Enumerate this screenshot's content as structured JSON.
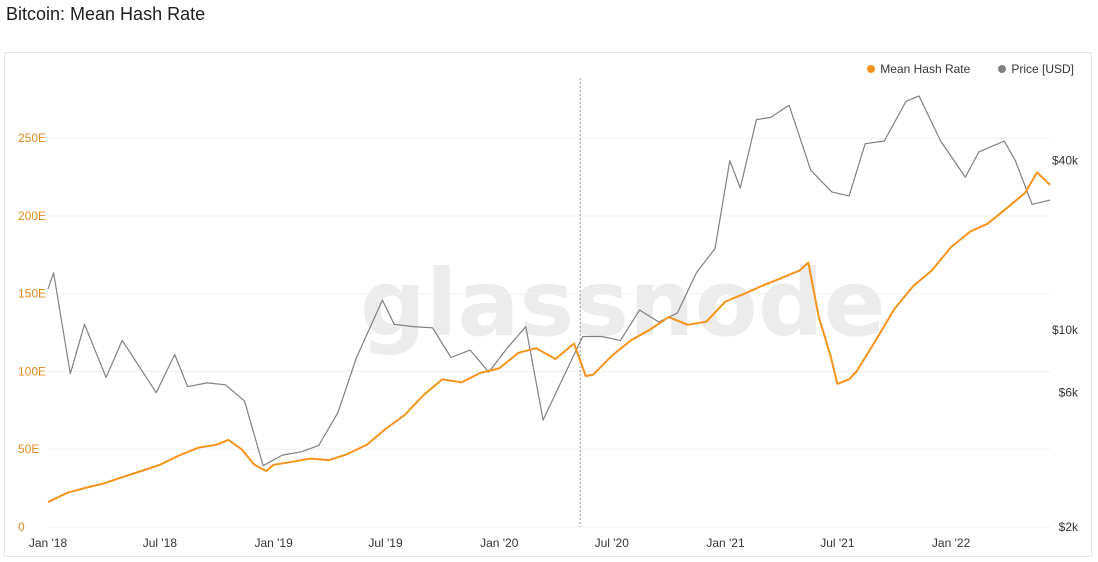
{
  "page": {
    "title": "Bitcoin: Mean Hash Rate"
  },
  "watermark": "glassnode",
  "legend": {
    "items": [
      {
        "label": "Mean Hash Rate",
        "color": "#f7931a"
      },
      {
        "label": "Price [USD]",
        "color": "#808080"
      }
    ]
  },
  "chart_data": {
    "type": "line",
    "title": "Bitcoin: Mean Hash Rate",
    "legend_position": "top-right",
    "grid": true,
    "x": {
      "start": "2018-01-01",
      "end": "2022-06-10",
      "ticks": [
        {
          "label": "Jan '18",
          "date": "2018-01-01"
        },
        {
          "label": "Jul '18",
          "date": "2018-07-01"
        },
        {
          "label": "Jan '19",
          "date": "2019-01-01"
        },
        {
          "label": "Jul '19",
          "date": "2019-07-01"
        },
        {
          "label": "Jan '20",
          "date": "2020-01-01"
        },
        {
          "label": "Jul '20",
          "date": "2020-07-01"
        },
        {
          "label": "Jan '21",
          "date": "2021-01-01"
        },
        {
          "label": "Jul '21",
          "date": "2021-07-01"
        },
        {
          "label": "Jan '22",
          "date": "2022-01-01"
        }
      ],
      "marker_date": "2020-05-11"
    },
    "y_left": {
      "unit": "EH/s",
      "range": [
        0,
        290
      ],
      "ticks": [
        {
          "label": "0",
          "value": 0
        },
        {
          "label": "50E",
          "value": 50
        },
        {
          "label": "100E",
          "value": 100
        },
        {
          "label": "150E",
          "value": 150
        },
        {
          "label": "200E",
          "value": 200
        },
        {
          "label": "250E",
          "value": 250
        }
      ]
    },
    "y_right": {
      "scale": "log",
      "unit": "USD",
      "range": [
        2000,
        80000
      ],
      "ticks": [
        {
          "label": "$2k",
          "value": 2000
        },
        {
          "label": "$6k",
          "value": 6000
        },
        {
          "label": "$10k",
          "value": 10000
        },
        {
          "label": "$40k",
          "value": 40000
        }
      ]
    },
    "series": [
      {
        "name": "Mean Hash Rate",
        "axis": "left",
        "color": "#f7931a",
        "points": [
          [
            "2018-01-01",
            16
          ],
          [
            "2018-02-01",
            22
          ],
          [
            "2018-03-01",
            25
          ],
          [
            "2018-04-01",
            28
          ],
          [
            "2018-05-01",
            32
          ],
          [
            "2018-06-01",
            36
          ],
          [
            "2018-07-01",
            40
          ],
          [
            "2018-08-01",
            46
          ],
          [
            "2018-09-01",
            51
          ],
          [
            "2018-10-01",
            53
          ],
          [
            "2018-10-20",
            56
          ],
          [
            "2018-11-10",
            50
          ],
          [
            "2018-12-01",
            40
          ],
          [
            "2018-12-20",
            36
          ],
          [
            "2019-01-01",
            40
          ],
          [
            "2019-02-01",
            42
          ],
          [
            "2019-03-01",
            44
          ],
          [
            "2019-04-01",
            43
          ],
          [
            "2019-05-01",
            47
          ],
          [
            "2019-06-01",
            53
          ],
          [
            "2019-07-01",
            63
          ],
          [
            "2019-08-01",
            72
          ],
          [
            "2019-09-01",
            85
          ],
          [
            "2019-10-01",
            95
          ],
          [
            "2019-11-01",
            93
          ],
          [
            "2019-12-01",
            99
          ],
          [
            "2020-01-01",
            102
          ],
          [
            "2020-02-01",
            112
          ],
          [
            "2020-03-01",
            115
          ],
          [
            "2020-04-01",
            108
          ],
          [
            "2020-05-01",
            118
          ],
          [
            "2020-05-20",
            97
          ],
          [
            "2020-06-01",
            98
          ],
          [
            "2020-07-01",
            110
          ],
          [
            "2020-08-01",
            120
          ],
          [
            "2020-09-01",
            127
          ],
          [
            "2020-10-01",
            135
          ],
          [
            "2020-11-01",
            130
          ],
          [
            "2020-12-01",
            132
          ],
          [
            "2021-01-01",
            145
          ],
          [
            "2021-02-01",
            150
          ],
          [
            "2021-03-01",
            155
          ],
          [
            "2021-04-01",
            160
          ],
          [
            "2021-05-01",
            165
          ],
          [
            "2021-05-15",
            170
          ],
          [
            "2021-06-01",
            135
          ],
          [
            "2021-06-20",
            110
          ],
          [
            "2021-07-01",
            92
          ],
          [
            "2021-07-20",
            95
          ],
          [
            "2021-08-01",
            100
          ],
          [
            "2021-09-01",
            120
          ],
          [
            "2021-10-01",
            140
          ],
          [
            "2021-11-01",
            155
          ],
          [
            "2021-12-01",
            165
          ],
          [
            "2022-01-01",
            180
          ],
          [
            "2022-02-01",
            190
          ],
          [
            "2022-03-01",
            195
          ],
          [
            "2022-04-01",
            205
          ],
          [
            "2022-05-01",
            215
          ],
          [
            "2022-05-20",
            228
          ],
          [
            "2022-06-10",
            220
          ]
        ]
      },
      {
        "name": "Price [USD]",
        "axis": "right",
        "color": "#808080",
        "points": [
          [
            "2018-01-01",
            14000
          ],
          [
            "2018-01-10",
            16000
          ],
          [
            "2018-02-06",
            7000
          ],
          [
            "2018-03-01",
            10500
          ],
          [
            "2018-04-05",
            6800
          ],
          [
            "2018-05-01",
            9200
          ],
          [
            "2018-06-25",
            6000
          ],
          [
            "2018-07-25",
            8200
          ],
          [
            "2018-08-15",
            6300
          ],
          [
            "2018-09-15",
            6500
          ],
          [
            "2018-10-15",
            6400
          ],
          [
            "2018-11-15",
            5600
          ],
          [
            "2018-12-15",
            3300
          ],
          [
            "2019-01-15",
            3600
          ],
          [
            "2019-02-15",
            3700
          ],
          [
            "2019-03-15",
            3900
          ],
          [
            "2019-04-15",
            5100
          ],
          [
            "2019-05-15",
            8000
          ],
          [
            "2019-06-26",
            12800
          ],
          [
            "2019-07-15",
            10500
          ],
          [
            "2019-08-15",
            10300
          ],
          [
            "2019-09-15",
            10200
          ],
          [
            "2019-10-15",
            8000
          ],
          [
            "2019-11-15",
            8500
          ],
          [
            "2019-12-15",
            7100
          ],
          [
            "2020-01-15",
            8700
          ],
          [
            "2020-02-13",
            10300
          ],
          [
            "2020-03-12",
            4800
          ],
          [
            "2020-04-15",
            6900
          ],
          [
            "2020-05-15",
            9500
          ],
          [
            "2020-06-15",
            9500
          ],
          [
            "2020-07-15",
            9200
          ],
          [
            "2020-08-15",
            11800
          ],
          [
            "2020-09-15",
            10700
          ],
          [
            "2020-10-15",
            11500
          ],
          [
            "2020-11-15",
            16000
          ],
          [
            "2020-12-15",
            19500
          ],
          [
            "2021-01-08",
            40000
          ],
          [
            "2021-01-25",
            32000
          ],
          [
            "2021-02-20",
            56000
          ],
          [
            "2021-03-15",
            57000
          ],
          [
            "2021-04-14",
            63000
          ],
          [
            "2021-05-19",
            37000
          ],
          [
            "2021-06-22",
            31000
          ],
          [
            "2021-07-20",
            30000
          ],
          [
            "2021-08-15",
            46000
          ],
          [
            "2021-09-15",
            47000
          ],
          [
            "2021-10-20",
            65000
          ],
          [
            "2021-11-10",
            68000
          ],
          [
            "2021-12-15",
            47000
          ],
          [
            "2022-01-24",
            35000
          ],
          [
            "2022-02-15",
            43000
          ],
          [
            "2022-03-28",
            47000
          ],
          [
            "2022-04-15",
            40000
          ],
          [
            "2022-05-12",
            28000
          ],
          [
            "2022-06-10",
            29000
          ]
        ]
      }
    ]
  }
}
